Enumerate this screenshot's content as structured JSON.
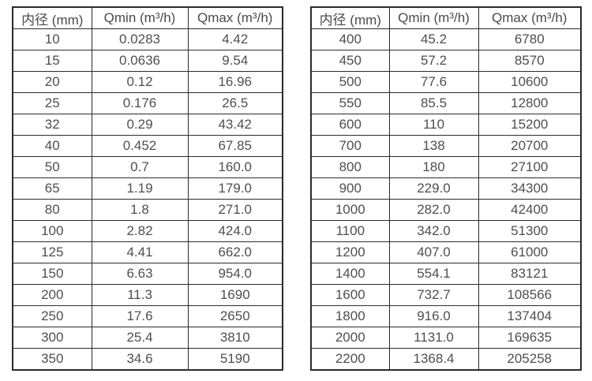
{
  "colors": {
    "background": "#ffffff",
    "table_border": "#2b2b2b",
    "text": "#4f4f4f"
  },
  "chart_data": [
    {
      "type": "table",
      "name": "diameter-flow-table-left",
      "headers": [
        "内径 (mm)",
        "Qmin (m³/h)",
        "Qmax (m³/h)"
      ],
      "rows": [
        [
          "10",
          "0.0283",
          "4.42"
        ],
        [
          "15",
          "0.0636",
          "9.54"
        ],
        [
          "20",
          "0.12",
          "16.96"
        ],
        [
          "25",
          "0.176",
          "26.5"
        ],
        [
          "32",
          "0.29",
          "43.42"
        ],
        [
          "40",
          "0.452",
          "67.85"
        ],
        [
          "50",
          "0.7",
          "160.0"
        ],
        [
          "65",
          "1.19",
          "179.0"
        ],
        [
          "80",
          "1.8",
          "271.0"
        ],
        [
          "100",
          "2.82",
          "424.0"
        ],
        [
          "125",
          "4.41",
          "662.0"
        ],
        [
          "150",
          "6.63",
          "954.0"
        ],
        [
          "200",
          "11.3",
          "1690"
        ],
        [
          "250",
          "17.6",
          "2650"
        ],
        [
          "300",
          "25.4",
          "3810"
        ],
        [
          "350",
          "34.6",
          "5190"
        ]
      ]
    },
    {
      "type": "table",
      "name": "diameter-flow-table-right",
      "headers": [
        "内径 (mm)",
        "Qmin (m³/h)",
        "Qmax (m³/h)"
      ],
      "rows": [
        [
          "400",
          "45.2",
          "6780"
        ],
        [
          "450",
          "57.2",
          "8570"
        ],
        [
          "500",
          "77.6",
          "10600"
        ],
        [
          "550",
          "85.5",
          "12800"
        ],
        [
          "600",
          "110",
          "15200"
        ],
        [
          "700",
          "138",
          "20700"
        ],
        [
          "800",
          "180",
          "27100"
        ],
        [
          "900",
          "229.0",
          "34300"
        ],
        [
          "1000",
          "282.0",
          "42400"
        ],
        [
          "1100",
          "342.0",
          "51300"
        ],
        [
          "1200",
          "407.0",
          "61000"
        ],
        [
          "1400",
          "554.1",
          "83121"
        ],
        [
          "1600",
          "732.7",
          "108566"
        ],
        [
          "1800",
          "916.0",
          "137404"
        ],
        [
          "2000",
          "1131.0",
          "169635"
        ],
        [
          "2200",
          "1368.4",
          "205258"
        ]
      ]
    }
  ]
}
